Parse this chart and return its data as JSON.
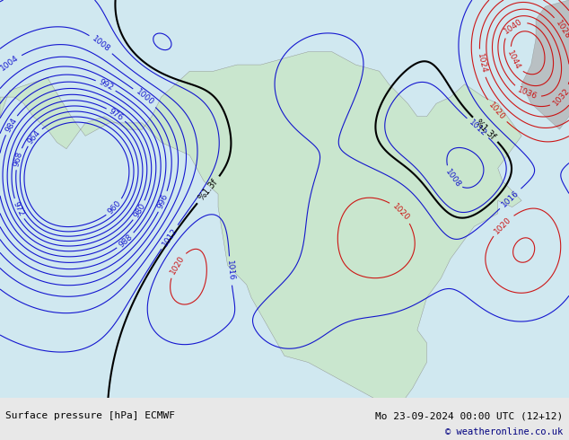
{
  "title_left": "Surface pressure [hPa] ECMWF",
  "title_right": "Mo 23-09-2024 00:00 UTC (12+12)",
  "copyright": "© weatheronline.co.uk",
  "bg_color": "#d0e8f0",
  "land_color": "#c8e6c8",
  "font_family": "monospace",
  "bottom_bar_color": "#e8e8e8",
  "contour_blue_color": "#0000cc",
  "contour_red_color": "#cc0000",
  "contour_black_color": "#000000",
  "text_color_left": "#000000",
  "text_color_right": "#000000",
  "copyright_color": "#000080"
}
